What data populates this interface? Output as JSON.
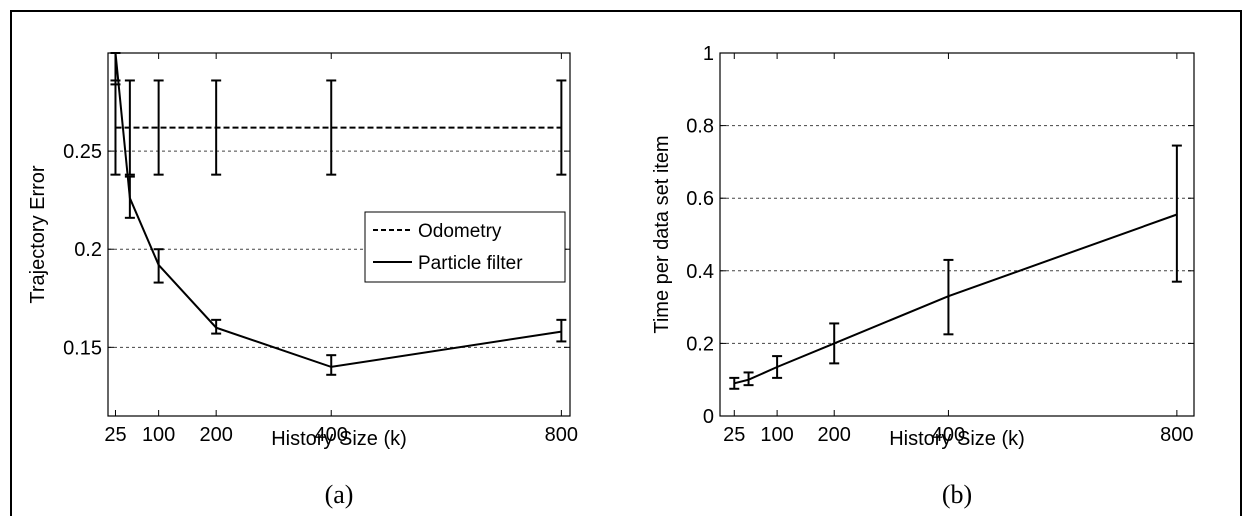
{
  "chart_data": [
    {
      "type": "line",
      "caption": "(a)",
      "xlabel": "History Size (k)",
      "ylabel": "Trajectory Error",
      "x": [
        25,
        50,
        100,
        200,
        400,
        800
      ],
      "xticks": [
        25,
        100,
        200,
        400,
        800
      ],
      "xtick_labels": [
        "25",
        "100",
        "200",
        "400",
        "800"
      ],
      "xlim": [
        12,
        815
      ],
      "yticks": [
        0.15,
        0.2,
        0.25
      ],
      "ytick_labels": [
        "0.15",
        "0.2",
        "0.25"
      ],
      "ylim": [
        0.115,
        0.3
      ],
      "grid": "horizontal dashed",
      "legend_position": "center-right",
      "series": [
        {
          "name": "Odometry",
          "style": "dashed",
          "x": [
            25,
            800
          ],
          "values": [
            0.262,
            0.262
          ],
          "error_x": [
            25,
            50,
            100,
            200,
            400,
            800
          ],
          "error_low": [
            0.238,
            0.238,
            0.238,
            0.238,
            0.238,
            0.238
          ],
          "error_high": [
            0.286,
            0.286,
            0.286,
            0.286,
            0.286,
            0.286
          ]
        },
        {
          "name": "Particle filter",
          "style": "solid",
          "x": [
            25,
            50,
            100,
            200,
            400,
            800
          ],
          "values": [
            0.3,
            0.226,
            0.192,
            0.16,
            0.14,
            0.158
          ],
          "error_low": [
            0.284,
            0.216,
            0.183,
            0.157,
            0.136,
            0.153
          ],
          "error_high": [
            0.3,
            0.237,
            0.2,
            0.164,
            0.146,
            0.164
          ]
        }
      ]
    },
    {
      "type": "line",
      "caption": "(b)",
      "xlabel": "History Size (k)",
      "ylabel": "Time per data set item",
      "x": [
        25,
        50,
        100,
        200,
        400,
        800
      ],
      "xticks": [
        25,
        100,
        200,
        400,
        800
      ],
      "xtick_labels": [
        "25",
        "100",
        "200",
        "400",
        "800"
      ],
      "xlim": [
        0,
        830
      ],
      "yticks": [
        0,
        0.2,
        0.4,
        0.6,
        0.8,
        1
      ],
      "ytick_labels": [
        "0",
        "0.2",
        "0.4",
        "0.6",
        "0.8",
        "1"
      ],
      "ylim": [
        0,
        1
      ],
      "grid": "horizontal dashed",
      "series": [
        {
          "style": "solid",
          "x": [
            25,
            50,
            100,
            200,
            400,
            800
          ],
          "values": [
            0.09,
            0.1,
            0.135,
            0.2,
            0.33,
            0.555
          ],
          "error_low": [
            0.075,
            0.085,
            0.105,
            0.145,
            0.225,
            0.37
          ],
          "error_high": [
            0.105,
            0.12,
            0.165,
            0.255,
            0.43,
            0.745
          ]
        }
      ]
    }
  ]
}
